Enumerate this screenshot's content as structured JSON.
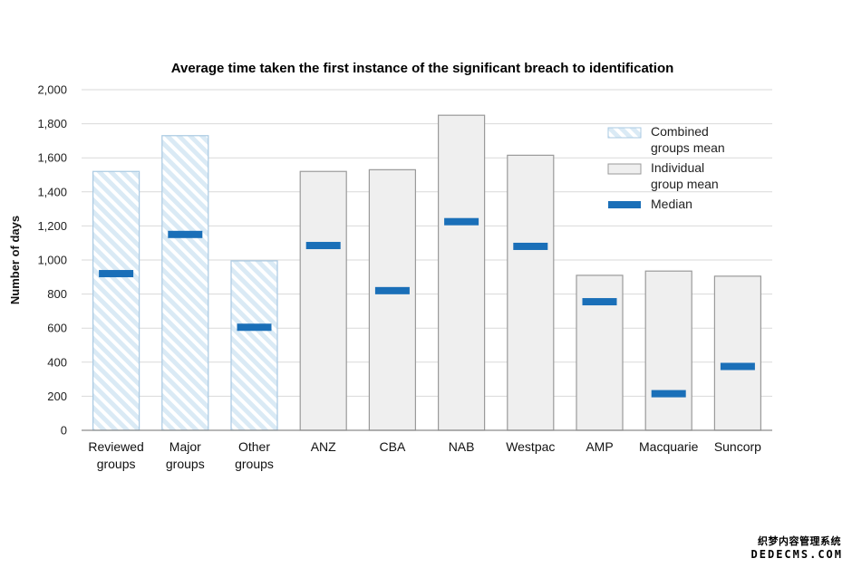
{
  "chart_data": {
    "type": "bar",
    "title": "Average time taken  the first instance of the significant breach to identification",
    "xlabel": "",
    "ylabel": "Number of days",
    "ylim": [
      0,
      2000
    ],
    "yticks": [
      "0",
      "200",
      "400",
      "600",
      "800",
      "1,000",
      "1,200",
      "1,400",
      "1,600",
      "1,800",
      "2,000"
    ],
    "ytick_values": [
      0,
      200,
      400,
      600,
      800,
      1000,
      1200,
      1400,
      1600,
      1800,
      2000
    ],
    "grid": true,
    "legend_position": "top-right",
    "categories": [
      [
        "Reviewed",
        "groups"
      ],
      [
        "Major",
        "groups"
      ],
      [
        "Other",
        "groups"
      ],
      [
        "ANZ"
      ],
      [
        "CBA"
      ],
      [
        "NAB"
      ],
      [
        "Westpac"
      ],
      [
        "AMP"
      ],
      [
        "Macquarie"
      ],
      [
        "Suncorp"
      ]
    ],
    "series": [
      {
        "name": "Mean",
        "values": [
          1520,
          1730,
          995,
          1520,
          1530,
          1850,
          1615,
          910,
          935,
          905
        ],
        "kinds": [
          "combined",
          "combined",
          "combined",
          "individual",
          "individual",
          "individual",
          "individual",
          "individual",
          "individual",
          "individual"
        ]
      },
      {
        "name": "Median",
        "values": [
          920,
          1150,
          605,
          1085,
          820,
          1225,
          1080,
          755,
          215,
          375
        ]
      }
    ],
    "legend": [
      {
        "key": "combined",
        "lines": [
          "Combined",
          "groups mean"
        ]
      },
      {
        "key": "individual",
        "lines": [
          "Individual",
          "group mean"
        ]
      },
      {
        "key": "median",
        "lines": [
          "Median"
        ]
      }
    ],
    "colors": {
      "combined_fill": "#daeaf5",
      "combined_stripe": "#ffffff",
      "combined_border": "#a9c9e2",
      "individual_fill": "#efefef",
      "individual_border": "#9a9a9a",
      "median": "#1a6fb8",
      "grid": "#d9d9d9",
      "axis": "#8c8c8c"
    }
  },
  "watermark": {
    "line1": "织梦内容管理系统",
    "line2": "DEDECMS.COM"
  }
}
